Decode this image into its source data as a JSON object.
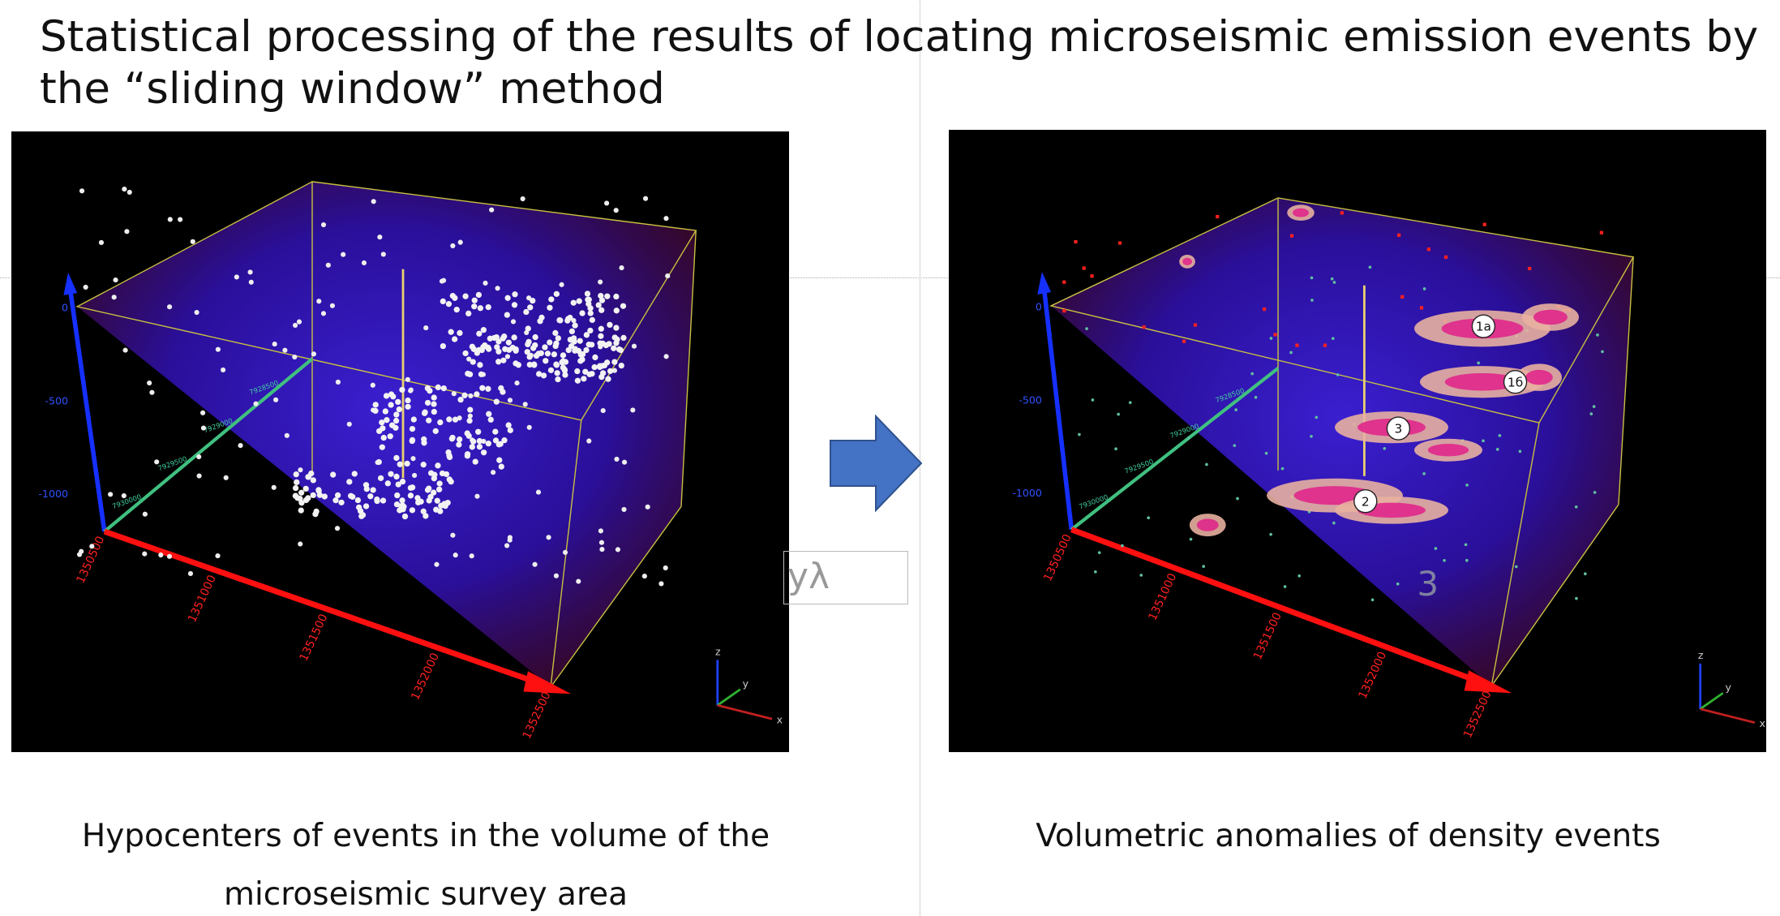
{
  "title": "Statistical processing of the results of locating microseismic emission events by the “sliding window” method",
  "left_panel": {
    "caption": [
      "Hypocenters of events in the volume of the",
      "microseismic survey area"
    ],
    "depth_labels": [
      "0",
      "-500",
      "-1000"
    ],
    "x_labels": [
      "1350500",
      "1351000",
      "1351500",
      "1352000",
      "1352500"
    ],
    "y_labels": [
      "7930000",
      "7929500",
      "7929000",
      "7928500"
    ],
    "triad": [
      "z",
      "y",
      "x"
    ]
  },
  "right_panel": {
    "caption": "Volumetric anomalies of density events",
    "depth_labels": [
      "0",
      "-500",
      "-1000"
    ],
    "x_labels": [
      "1350500",
      "1351000",
      "1351500",
      "1352000",
      "1352500"
    ],
    "y_labels": [
      "7930000",
      "7929500",
      "7929000",
      "7928500"
    ],
    "triad": [
      "z",
      "y",
      "x"
    ],
    "anomaly_labels": [
      "1а",
      "1б",
      "3",
      "2"
    ],
    "overlay_number": "3"
  },
  "text_box": "уλ"
}
